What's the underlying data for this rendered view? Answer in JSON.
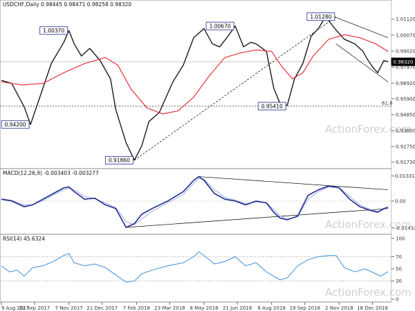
{
  "header": {
    "main": "USDCHF,Daily  0.98445 0.98471 0.98258 0.98320",
    "macd": "MACD(12,26,9) -0.003403 -0.003277",
    "rsi": "RSI(14) 45.6324"
  },
  "watermark": "ActionForex.com",
  "colors": {
    "price": "#1a1a1a",
    "ma": "#e8202a",
    "macd": "#1c2a8c",
    "signal": "#a9b4e6",
    "rsi": "#3a8fd6",
    "trend": "#000000",
    "grid": "#999999",
    "current": "#000000"
  },
  "chart_data": [
    {
      "type": "line",
      "panel": "price",
      "title": "USDCHF,Daily",
      "ylim": [
        0.9158,
        1.0174
      ],
      "y_ticks": [
        "1.01120",
        "1.00070",
        "0.99020",
        "0.97970",
        "0.96920",
        "0.95900",
        "0.94850",
        "0.93800",
        "0.92750",
        "0.91730"
      ],
      "x_ticks": [
        "9 Aug 2017",
        "22 Sep 2017",
        "7 Nov 2017",
        "21 Dec 2017",
        "7 Feb 2018",
        "23 Mar 2018",
        "8 May 2018",
        "21 Jun 2018",
        "6 Aug 2018",
        "19 Sep 2018",
        "2 Nov 2018",
        "18 Dec 2018"
      ],
      "x_index": [
        0,
        32,
        65,
        97,
        130,
        162,
        195,
        227,
        260,
        292,
        325,
        357
      ],
      "n_bars": 375,
      "series": [
        {
          "role": "price",
          "x": [
            0,
            10,
            22,
            28,
            38,
            48,
            60,
            65,
            70,
            77,
            85,
            95,
            105,
            110,
            120,
            128,
            135,
            142,
            152,
            165,
            175,
            185,
            195,
            203,
            210,
            218,
            225,
            233,
            240,
            245,
            255,
            262,
            268,
            275,
            282,
            290,
            298,
            305,
            312,
            322,
            330,
            340,
            348,
            352,
            357,
            362,
            368,
            372
          ],
          "y": [
            0.971,
            0.969,
            0.9535,
            0.942,
            0.962,
            0.982,
            0.996,
            1.0037,
            0.995,
            0.987,
            0.992,
            0.984,
            0.972,
            0.952,
            0.93,
            0.9186,
            0.928,
            0.944,
            0.95,
            0.97,
            0.981,
            0.999,
            1.005,
            0.995,
            0.993,
            1.0,
            1.0067,
            0.993,
            0.996,
            0.995,
            0.99,
            0.966,
            0.956,
            0.9545,
            0.972,
            0.982,
            1.0,
            1.005,
            1.0128,
            1.004,
            0.998,
            0.995,
            0.99,
            0.985,
            0.98,
            0.976,
            0.984,
            0.9832
          ]
        },
        {
          "role": "ma",
          "x": [
            0,
            20,
            40,
            60,
            80,
            100,
            112,
            125,
            140,
            155,
            170,
            185,
            200,
            215,
            230,
            245,
            260,
            270,
            280,
            290,
            300,
            315,
            330,
            345,
            360,
            372
          ],
          "y": [
            0.97,
            0.968,
            0.969,
            0.976,
            0.982,
            0.986,
            0.981,
            0.965,
            0.953,
            0.949,
            0.951,
            0.96,
            0.974,
            0.986,
            0.989,
            0.991,
            0.99,
            0.98,
            0.972,
            0.976,
            0.987,
            0.998,
            1.001,
            0.999,
            0.995,
            0.99
          ]
        }
      ],
      "trend_lines": [
        {
          "x": [
            128,
            322
          ],
          "y": [
            0.9186,
            1.0128
          ]
        },
        {
          "x": [
            320,
            372
          ],
          "y": [
            1.0128,
            0.999
          ]
        },
        {
          "x": [
            322,
            372
          ],
          "y": [
            0.995,
            0.97
          ]
        }
      ],
      "h_line": {
        "y": 0.9541,
        "label": "61.8"
      },
      "current": {
        "y": 0.9832,
        "label": "0.98320"
      },
      "callouts": [
        {
          "x": 65,
          "y": 1.0037,
          "label": "1.00370",
          "pos": "left"
        },
        {
          "x": 225,
          "y": 1.0067,
          "label": "1.00670",
          "pos": "left"
        },
        {
          "x": 322,
          "y": 1.0128,
          "label": "1.01280",
          "pos": "left"
        },
        {
          "x": 28,
          "y": 0.942,
          "label": "0.94200",
          "pos": "left"
        },
        {
          "x": 128,
          "y": 0.9186,
          "label": "0.91860",
          "pos": "left"
        },
        {
          "x": 275,
          "y": 0.9541,
          "label": "0.95410",
          "pos": "left"
        }
      ]
    },
    {
      "type": "line",
      "panel": "macd",
      "title": "MACD(12,26,9)",
      "ylim": [
        -0.0162,
        0.0143
      ],
      "y_ticks": [
        "0.013319",
        "0.00",
        "-0.014323"
      ],
      "series": [
        {
          "role": "macd",
          "x": [
            0,
            10,
            22,
            30,
            40,
            50,
            60,
            65,
            70,
            80,
            90,
            100,
            110,
            120,
            128,
            135,
            145,
            160,
            175,
            185,
            190,
            195,
            205,
            215,
            225,
            235,
            245,
            255,
            262,
            268,
            275,
            285,
            295,
            305,
            315,
            325,
            335,
            345,
            355,
            362,
            368,
            372
          ],
          "y": [
            0.001,
            0.0,
            -0.003,
            -0.002,
            0.001,
            0.004,
            0.007,
            0.0075,
            0.005,
            0.001,
            0.0015,
            -0.002,
            -0.004,
            -0.014,
            -0.012,
            -0.007,
            -0.004,
            0.0,
            0.005,
            0.011,
            0.013,
            0.011,
            0.004,
            0.001,
            0.0,
            -0.002,
            0.0,
            -0.001,
            -0.006,
            -0.009,
            -0.01,
            -0.008,
            0.003,
            0.006,
            0.008,
            0.007,
            0.001,
            -0.003,
            -0.005,
            -0.006,
            -0.004,
            -0.0033
          ]
        },
        {
          "role": "signal",
          "x": [
            0,
            10,
            22,
            30,
            40,
            50,
            60,
            65,
            70,
            80,
            90,
            100,
            110,
            120,
            128,
            135,
            145,
            160,
            175,
            185,
            190,
            195,
            205,
            215,
            225,
            235,
            245,
            255,
            262,
            268,
            275,
            285,
            295,
            305,
            315,
            325,
            335,
            345,
            355,
            362,
            368,
            372
          ],
          "y": [
            0.0012,
            0.0004,
            -0.0022,
            -0.002,
            0.0002,
            0.0032,
            0.006,
            0.0068,
            0.006,
            0.0025,
            0.0012,
            -0.001,
            -0.0035,
            -0.011,
            -0.0125,
            -0.0095,
            -0.0055,
            -0.001,
            0.0035,
            0.0095,
            0.012,
            0.0115,
            0.006,
            0.002,
            0.0005,
            -0.0015,
            -0.0005,
            -0.0008,
            -0.0045,
            -0.008,
            -0.0095,
            -0.0085,
            0.001,
            0.005,
            0.0075,
            0.0072,
            0.0025,
            -0.002,
            -0.0045,
            -0.0055,
            -0.0045,
            -0.0033
          ]
        }
      ],
      "trend_lines": [
        {
          "x": [
            190,
            372
          ],
          "y": [
            0.013,
            0.006
          ]
        },
        {
          "x": [
            120,
            372
          ],
          "y": [
            -0.014,
            -0.004
          ]
        }
      ]
    },
    {
      "type": "line",
      "panel": "rsi",
      "title": "RSI(14)",
      "ylim": [
        0,
        100
      ],
      "y_ticks": [
        "100",
        "70",
        "50",
        "30",
        "0"
      ],
      "series": [
        {
          "role": "rsi",
          "x": [
            0,
            8,
            15,
            22,
            30,
            40,
            50,
            60,
            65,
            70,
            80,
            90,
            100,
            110,
            120,
            128,
            135,
            145,
            160,
            175,
            185,
            190,
            195,
            205,
            215,
            225,
            235,
            245,
            255,
            262,
            268,
            275,
            285,
            295,
            305,
            315,
            322,
            330,
            340,
            350,
            360,
            365,
            372
          ],
          "y": [
            55,
            45,
            48,
            38,
            52,
            55,
            62,
            72,
            75,
            60,
            55,
            58,
            52,
            40,
            28,
            30,
            42,
            48,
            55,
            60,
            70,
            78,
            72,
            58,
            62,
            70,
            55,
            60,
            45,
            38,
            32,
            35,
            55,
            65,
            70,
            72,
            72,
            52,
            45,
            50,
            42,
            38,
            45.6
          ]
        }
      ]
    }
  ]
}
